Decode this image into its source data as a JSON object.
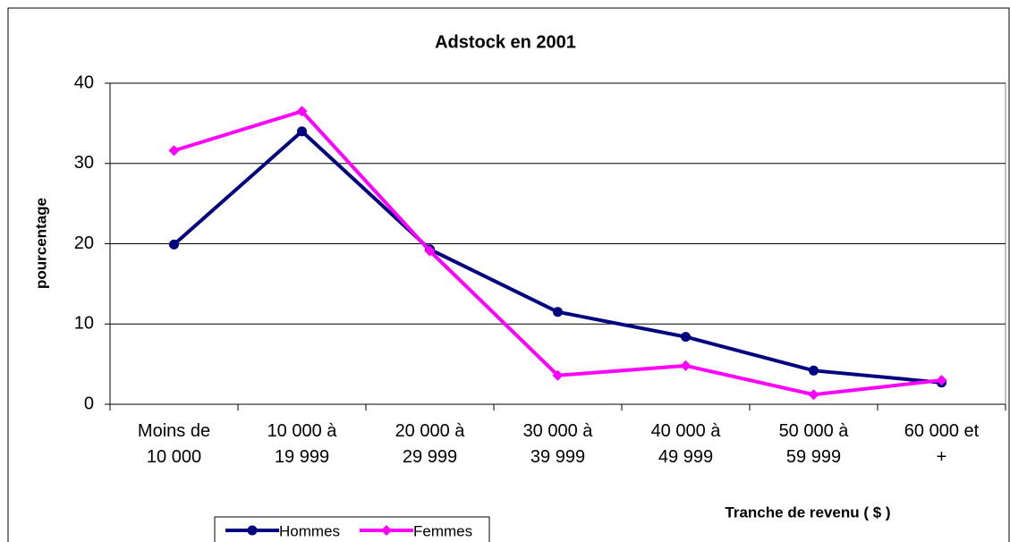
{
  "chart_data": {
    "type": "line",
    "title": "Adstock en 2001",
    "x_label": "Tranche de revenu ( $ )",
    "y_label": "pourcentage",
    "categories": [
      "Moins de\n10 000",
      "10 000 à\n19 999",
      "20 000 à\n29 999",
      "30 000 à\n39 999",
      "40 000 à\n49 999",
      "50 000 à\n59 999",
      "60 000 et\n+"
    ],
    "series": [
      {
        "name": "Hommes",
        "color": "#000080",
        "marker": "circle",
        "values": [
          19.9,
          34.0,
          19.3,
          11.5,
          8.4,
          4.2,
          2.7
        ]
      },
      {
        "name": "Femmes",
        "color": "#ff00ff",
        "marker": "diamond",
        "values": [
          31.6,
          36.5,
          19.1,
          3.6,
          4.8,
          1.2,
          3.0
        ]
      }
    ],
    "ylim": [
      0,
      40
    ],
    "yticks": [
      0,
      10,
      20,
      30,
      40
    ],
    "grid": true,
    "legend": "bottom-left"
  }
}
